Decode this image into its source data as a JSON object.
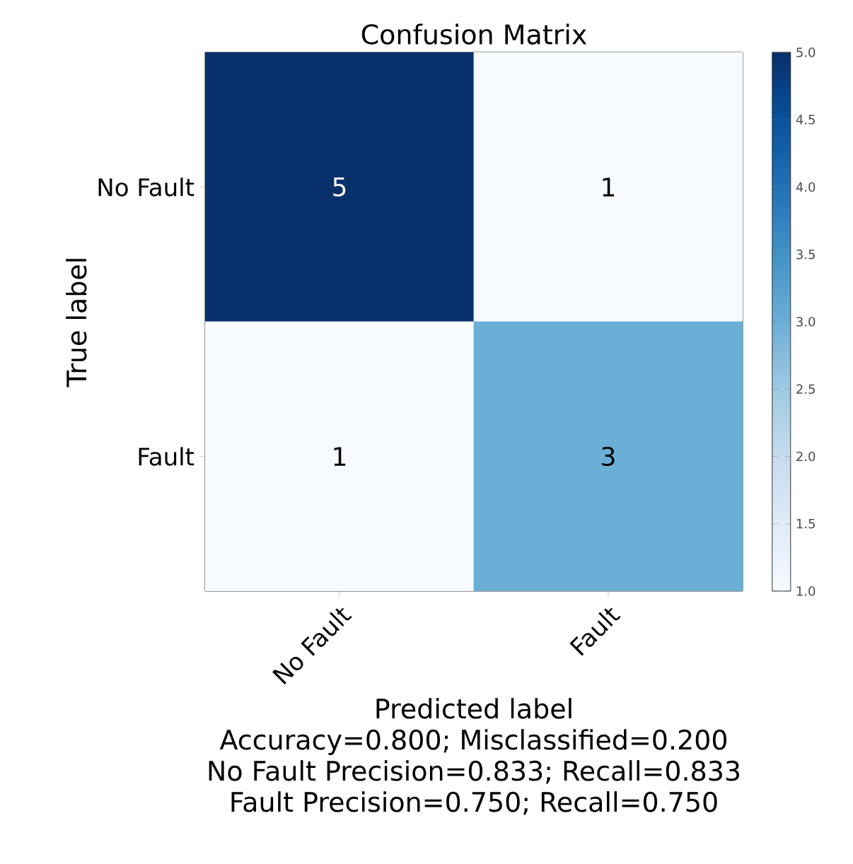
{
  "chart_data": {
    "type": "heatmap",
    "title": "Confusion Matrix",
    "xlabel": "Predicted label",
    "ylabel": "True label",
    "categories": [
      "No Fault",
      "Fault"
    ],
    "y_categories": [
      "No Fault",
      "Fault"
    ],
    "cells": [
      [
        5,
        1
      ],
      [
        1,
        3
      ]
    ],
    "data_labels": true,
    "clim": [
      1,
      5
    ],
    "cticks": [
      {
        "value": 1,
        "label": "1.0"
      },
      1.5,
      {
        "value": 2,
        "label": "2.0"
      },
      2.5,
      {
        "value": 3,
        "label": "3.0"
      },
      3.5,
      {
        "value": 4,
        "label": "4.0"
      },
      4.5,
      {
        "value": 5,
        "label": "5.0"
      }
    ],
    "annotations": [
      "Accuracy=0.800; Misclassified=0.200",
      "No Fault Precision=0.833; Recall=0.833",
      "Fault Precision=0.750; Recall=0.750"
    ]
  }
}
